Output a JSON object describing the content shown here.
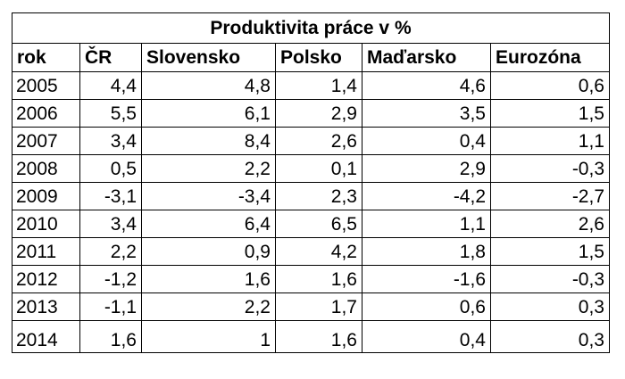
{
  "table": {
    "title": "Produktivita práce v %",
    "columns": [
      "rok",
      "ČR",
      "Slovensko",
      "Polsko",
      "Maďarsko",
      "Eurozóna"
    ],
    "rows": [
      [
        "2005",
        "4,4",
        "4,8",
        "1,4",
        "4,6",
        "0,6"
      ],
      [
        "2006",
        "5,5",
        "6,1",
        "2,9",
        "3,5",
        "1,5"
      ],
      [
        "2007",
        "3,4",
        "8,4",
        "2,6",
        "0,4",
        "1,1"
      ],
      [
        "2008",
        "0,5",
        "2,2",
        "0,1",
        "2,9",
        "-0,3"
      ],
      [
        "2009",
        "-3,1",
        "-3,4",
        "2,3",
        "-4,2",
        "-2,7"
      ],
      [
        "2010",
        "3,4",
        "6,4",
        "6,5",
        "1,1",
        "2,6"
      ],
      [
        "2011",
        "2,2",
        "0,9",
        "4,2",
        "1,8",
        "1,5"
      ],
      [
        "2012",
        "-1,2",
        "1,6",
        "1,6",
        "-1,6",
        "-0,3"
      ],
      [
        "2013",
        "-1,1",
        "2,2",
        "1,7",
        "0,6",
        "0,3"
      ],
      [
        "2014",
        "1,6",
        "1",
        "1,6",
        "0,4",
        "0,3"
      ]
    ]
  }
}
